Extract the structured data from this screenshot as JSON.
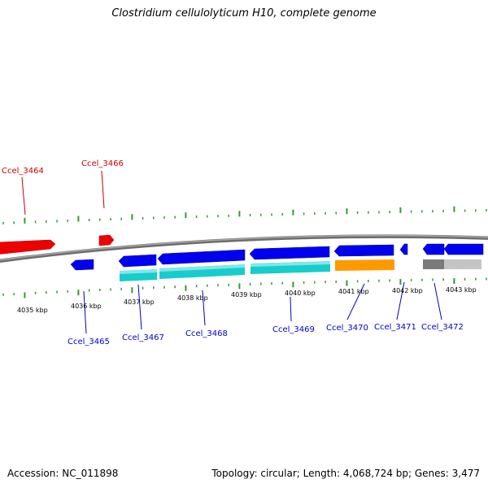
{
  "title": "Clostridium cellulolyticum H10, complete genome",
  "footer": {
    "accession": "Accession: NC_011898",
    "topology": "Topology: circular; Length: 4,068,724 bp; Genes: 3,477"
  },
  "colors": {
    "backbone": "#7f7f7f",
    "forward_strand_gene": "#ff0000",
    "reverse_strand_gene": "#0000ee",
    "forward_label": "#cc0000",
    "reverse_label": "#0000cc",
    "cds_cyan": "#18cccc",
    "cds_orange": "#ff9900",
    "cds_gray": "#7a7a7a",
    "cds_lightgray": "#c4c4c4",
    "ticks": "#339933"
  },
  "kbp_labels": [
    "4035 kbp",
    "4036 kbp",
    "4037 kbp",
    "4038 kbp",
    "4039 kbp",
    "4040 kbp",
    "4041 kbp",
    "4042 kbp",
    "4043 kbp"
  ],
  "forward_genes": [
    {
      "label": "Ccel_3464"
    },
    {
      "label": "Ccel_3466"
    }
  ],
  "reverse_genes": [
    {
      "label": "Ccel_3465"
    },
    {
      "label": "Ccel_3467"
    },
    {
      "label": "Ccel_3468"
    },
    {
      "label": "Ccel_3469"
    },
    {
      "label": "Ccel_3470"
    },
    {
      "label": "Ccel_3471"
    },
    {
      "label": "Ccel_3472"
    }
  ]
}
